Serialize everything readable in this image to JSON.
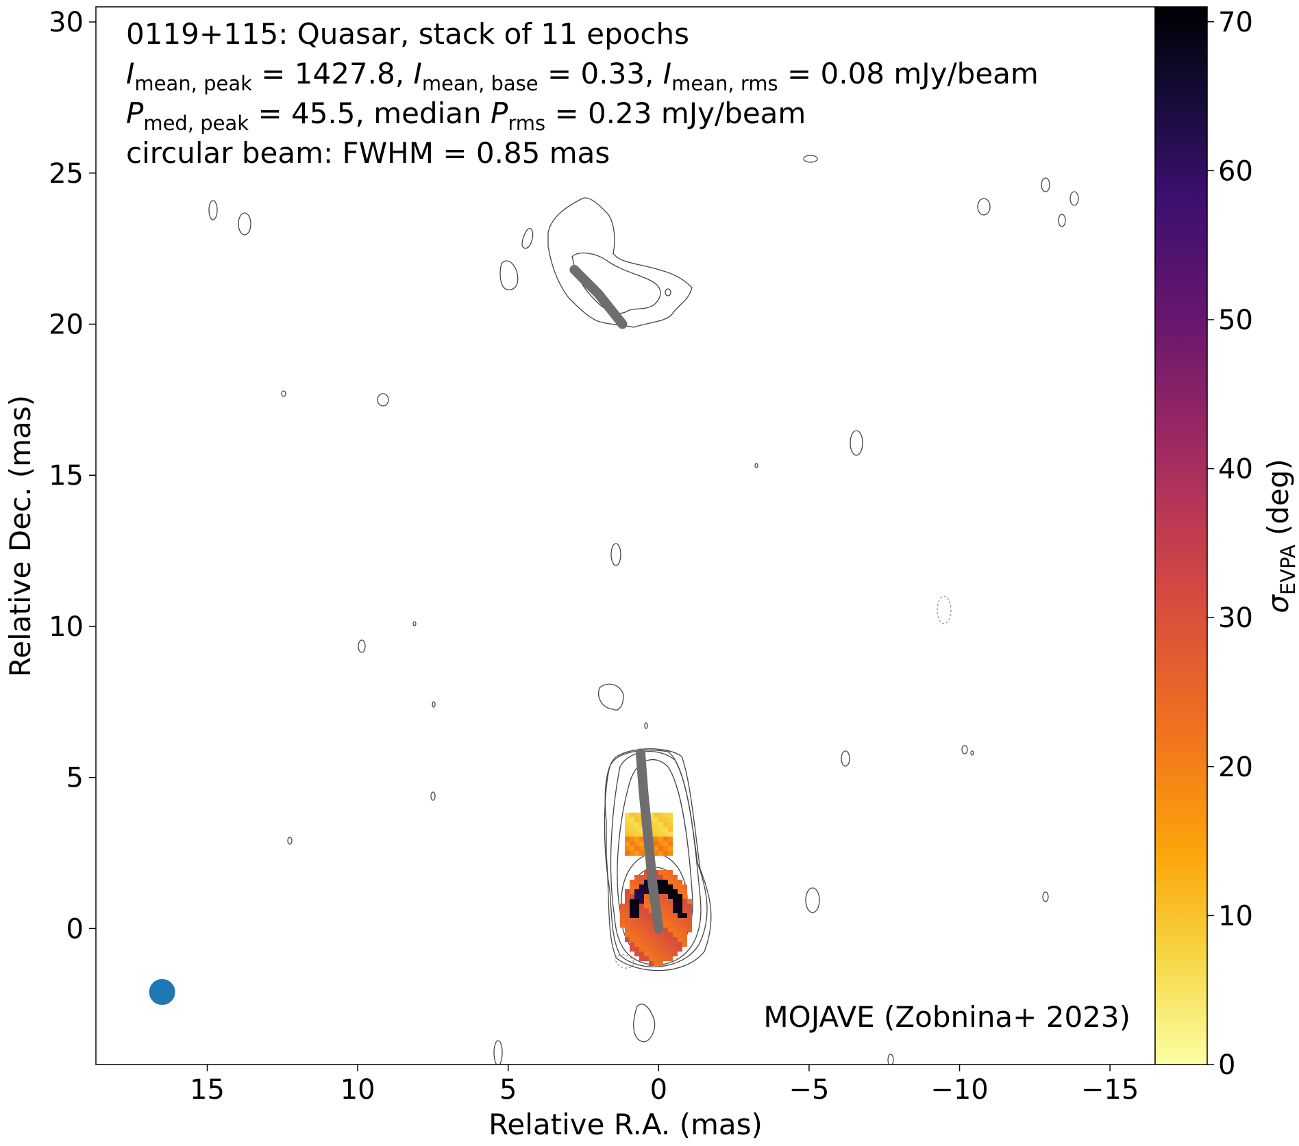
{
  "chart_data": {
    "type": "heatmap",
    "title_lines": [
      "0119+115: Quasar, stack of 11 epochs"
    ],
    "stats": {
      "I_mean_peak": "1427.8",
      "I_mean_base": "0.33",
      "I_mean_rms": "0.08",
      "P_med_peak": "45.5",
      "median_P_rms": "0.23",
      "unit": "mJy/beam"
    },
    "beam_text": "circular beam: FWHM = 0.85 mas",
    "credit": "MOJAVE (Zobnina+ 2023)",
    "xlabel": "Relative R.A. (mas)",
    "ylabel": "Relative Dec. (mas)",
    "colorbar_label": "σ_EVPA (deg)",
    "xlim": [
      18.7,
      -16.5
    ],
    "ylim": [
      -4.5,
      30.5
    ],
    "xticks": [
      15,
      10,
      5,
      0,
      -5,
      -10,
      -15
    ],
    "yticks": [
      0,
      5,
      10,
      15,
      20,
      25,
      30
    ],
    "colorbar_range": [
      0,
      71
    ],
    "colorbar_ticks": [
      0,
      10,
      20,
      30,
      40,
      50,
      60,
      70
    ],
    "colormap": "inferno_r",
    "beam": {
      "x": 16.5,
      "y": -2.1,
      "fwhm_mas": 0.85,
      "color": "#1f77b4"
    },
    "jet_ridgelines": [
      {
        "name": "",
        "points": [
          [
            0.0,
            0.0
          ],
          [
            0.2,
            1.5
          ],
          [
            0.35,
            3.0
          ],
          [
            0.5,
            4.5
          ],
          [
            0.6,
            5.8
          ]
        ]
      },
      {
        "name": "",
        "points": [
          [
            1.2,
            20.0
          ],
          [
            1.6,
            20.5
          ],
          [
            2.0,
            21.0
          ],
          [
            2.4,
            21.4
          ],
          [
            2.8,
            21.8
          ]
        ]
      }
    ],
    "ridgeline_color": "#6e6e6e"
  },
  "text": {
    "line1": "0119+115: Quasar, stack of 11 epochs",
    "line2": {
      "I": "I",
      "sub_peak": "mean, peak",
      "v_peak": " = 1427.8, ",
      "sub_base": "mean, base",
      "v_base": " = 0.33, ",
      "sub_rms": "mean, rms",
      "v_rms": " = 0.08 mJy/beam"
    },
    "line3": {
      "P": "P",
      "sub_med": "med, peak",
      "v_med": " = 45.5, median ",
      "sub_rms": "rms",
      "v_rms": " = 0.23 mJy/beam"
    },
    "line4": "circular beam: FWHM = 0.85 mas",
    "credit": "MOJAVE (Zobnina+ 2023)",
    "xlabel": "Relative R.A. (mas)",
    "ylabel": "Relative Dec. (mas)",
    "cbar": {
      "sigma": "σ",
      "sub": "EVPA",
      "unit": " (deg)"
    }
  }
}
